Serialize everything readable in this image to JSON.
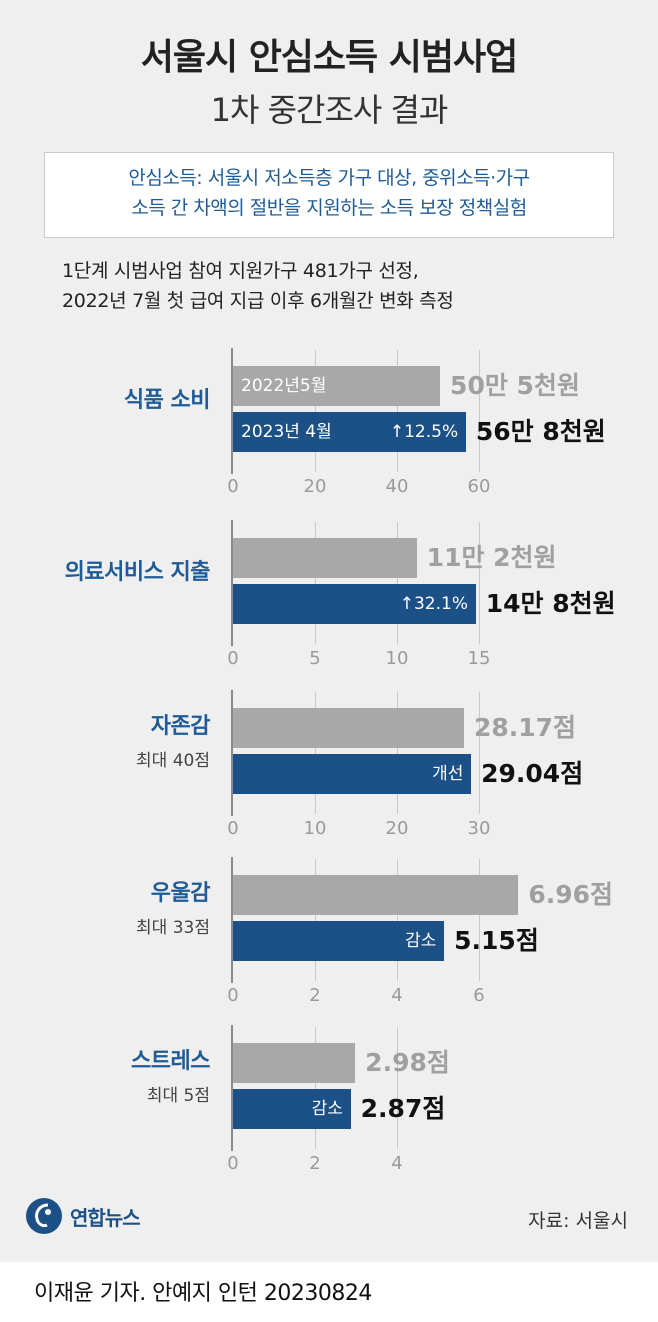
{
  "title": "서울시 안심소득 시범사업",
  "subtitle": "1차 중간조사 결과",
  "definition_lines": [
    "안심소득: 서울시 저소득층 가구 대상, 중위소득·가구",
    "소득 간 차액의 절반을 지원하는 소득 보장 정책실험"
  ],
  "intro_lines": [
    "1단계 시범사업 참여 지원가구 481가구 선정,",
    "2022년 7월 첫 급여 지급 이후 6개월간 변화 측정"
  ],
  "colors": {
    "before": "#a8a8a8",
    "after": "#1c5188",
    "label": "#1f5b96"
  },
  "chart_data": [
    {
      "type": "bar",
      "category": "식품 소비",
      "subtitle": "",
      "xlim": [
        0,
        60
      ],
      "ticks": [
        "0",
        "20",
        "40",
        "60"
      ],
      "series": [
        {
          "name": "2022년5월",
          "value": 50.5,
          "label": "50만 5천원"
        },
        {
          "name": "2023년 4월",
          "value": 56.8,
          "label": "56만 8천원"
        }
      ],
      "change": "↑12.5%"
    },
    {
      "type": "bar",
      "category": "의료서비스 지출",
      "subtitle": "",
      "xlim": [
        0,
        15
      ],
      "ticks": [
        "0",
        "5",
        "10",
        "15"
      ],
      "series": [
        {
          "value": 11.2,
          "label": "11만 2천원"
        },
        {
          "value": 14.8,
          "label": "14만 8천원"
        }
      ],
      "change": "↑32.1%"
    },
    {
      "type": "bar",
      "category": "자존감",
      "subtitle": "최대 40점",
      "xlim": [
        0,
        30
      ],
      "ticks": [
        "0",
        "10",
        "20",
        "30"
      ],
      "series": [
        {
          "value": 28.17,
          "label": "28.17점"
        },
        {
          "value": 29.04,
          "label": "29.04점"
        }
      ],
      "change": "개선"
    },
    {
      "type": "bar",
      "category": "우울감",
      "subtitle": "최대 33점",
      "xlim": [
        0,
        6
      ],
      "ticks": [
        "0",
        "2",
        "4",
        "6"
      ],
      "series": [
        {
          "value": 6.96,
          "label": "6.96점"
        },
        {
          "value": 5.15,
          "label": "5.15점"
        }
      ],
      "change": "감소"
    },
    {
      "type": "bar",
      "category": "스트레스",
      "subtitle": "최대 5점",
      "xlim": [
        0,
        4
      ],
      "ticks": [
        "0",
        "2",
        "4"
      ],
      "series": [
        {
          "value": 2.98,
          "label": "2.98점"
        },
        {
          "value": 2.87,
          "label": "2.87점"
        }
      ],
      "change": "감소"
    }
  ],
  "logo_text": "연합뉴스",
  "source": "자료: 서울시",
  "credit": "이재윤 기자. 안예지 인턴  20230824"
}
